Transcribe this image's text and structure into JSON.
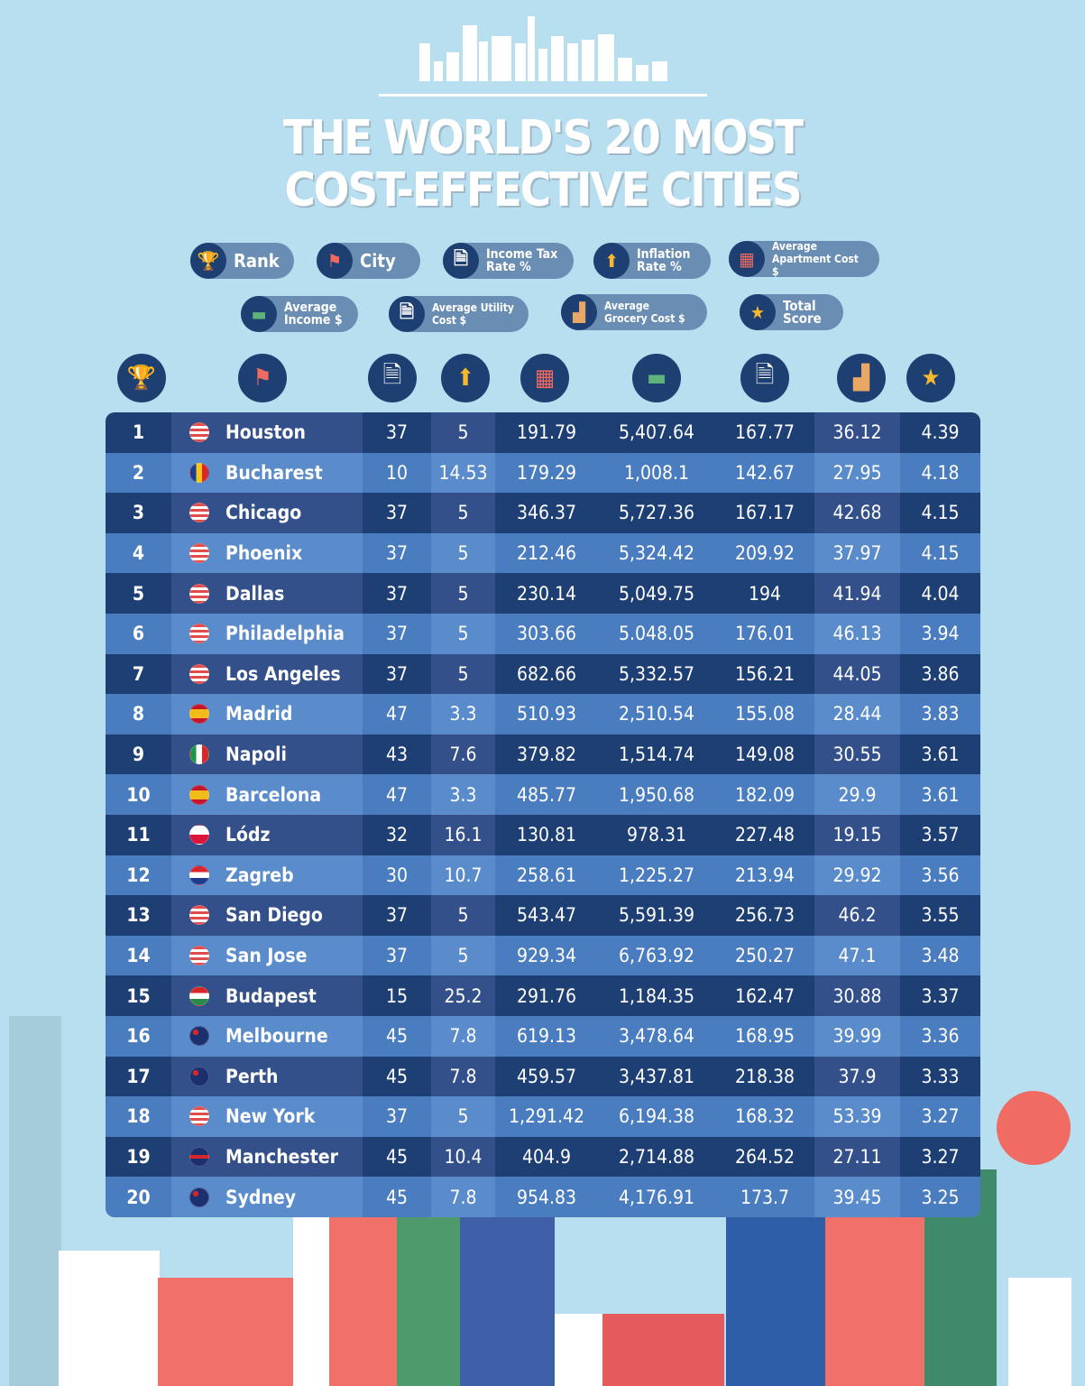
{
  "title_line1": "THE WORLD'S 20 MOST",
  "title_line2": "COST-EFFECTIVE CITIES",
  "legend": [
    {
      "icon": "trophy-icon",
      "label": "Rank"
    },
    {
      "icon": "flag-icon",
      "label": "City"
    },
    {
      "icon": "tax-document-icon",
      "label": "Income Tax Rate %"
    },
    {
      "icon": "inflation-coin-arrow-icon",
      "label": "Inflation Rate %"
    },
    {
      "icon": "apartment-building-icon",
      "label": "Average Apartment Cost $"
    },
    {
      "icon": "banknotes-icon",
      "label": "Average Income $"
    },
    {
      "icon": "utility-bill-icon",
      "label": "Average Utility Cost $"
    },
    {
      "icon": "grocery-bag-icon",
      "label": "Average Grocery Cost $"
    },
    {
      "icon": "star-icon",
      "label": "Total Score"
    }
  ],
  "colors": {
    "background": "#b8dff0",
    "row_dark": "#1e3f74",
    "row_light": "#4a7cc0",
    "pill": "#6a8db3",
    "icon_circle": "#1d3f72"
  },
  "rows": [
    {
      "rank": "1",
      "flag": "us",
      "city": "Houston",
      "tax": "37",
      "inflation": "5",
      "apartment": "191.79",
      "income": "5,407.64",
      "utility": "167.77",
      "grocery": "36.12",
      "score": "4.39"
    },
    {
      "rank": "2",
      "flag": "ro",
      "city": "Bucharest",
      "tax": "10",
      "inflation": "14.53",
      "apartment": "179.29",
      "income": "1,008.1",
      "utility": "142.67",
      "grocery": "27.95",
      "score": "4.18"
    },
    {
      "rank": "3",
      "flag": "us",
      "city": "Chicago",
      "tax": "37",
      "inflation": "5",
      "apartment": "346.37",
      "income": "5,727.36",
      "utility": "167.17",
      "grocery": "42.68",
      "score": "4.15"
    },
    {
      "rank": "4",
      "flag": "us",
      "city": "Phoenix",
      "tax": "37",
      "inflation": "5",
      "apartment": "212.46",
      "income": "5,324.42",
      "utility": "209.92",
      "grocery": "37.97",
      "score": "4.15"
    },
    {
      "rank": "5",
      "flag": "us",
      "city": "Dallas",
      "tax": "37",
      "inflation": "5",
      "apartment": "230.14",
      "income": "5,049.75",
      "utility": "194",
      "grocery": "41.94",
      "score": "4.04"
    },
    {
      "rank": "6",
      "flag": "us",
      "city": "Philadelphia",
      "tax": "37",
      "inflation": "5",
      "apartment": "303.66",
      "income": "5.048.05",
      "utility": "176.01",
      "grocery": "46.13",
      "score": "3.94"
    },
    {
      "rank": "7",
      "flag": "us",
      "city": "Los Angeles",
      "tax": "37",
      "inflation": "5",
      "apartment": "682.66",
      "income": "5,332.57",
      "utility": "156.21",
      "grocery": "44.05",
      "score": "3.86"
    },
    {
      "rank": "8",
      "flag": "es",
      "city": "Madrid",
      "tax": "47",
      "inflation": "3.3",
      "apartment": "510.93",
      "income": "2,510.54",
      "utility": "155.08",
      "grocery": "28.44",
      "score": "3.83"
    },
    {
      "rank": "9",
      "flag": "it",
      "city": "Napoli",
      "tax": "43",
      "inflation": "7.6",
      "apartment": "379.82",
      "income": "1,514.74",
      "utility": "149.08",
      "grocery": "30.55",
      "score": "3.61"
    },
    {
      "rank": "10",
      "flag": "es",
      "city": "Barcelona",
      "tax": "47",
      "inflation": "3.3",
      "apartment": "485.77",
      "income": "1,950.68",
      "utility": "182.09",
      "grocery": "29.9",
      "score": "3.61"
    },
    {
      "rank": "11",
      "flag": "pl",
      "city": "Lódz",
      "tax": "32",
      "inflation": "16.1",
      "apartment": "130.81",
      "income": "978.31",
      "utility": "227.48",
      "grocery": "19.15",
      "score": "3.57"
    },
    {
      "rank": "12",
      "flag": "hr",
      "city": "Zagreb",
      "tax": "30",
      "inflation": "10.7",
      "apartment": "258.61",
      "income": "1,225.27",
      "utility": "213.94",
      "grocery": "29.92",
      "score": "3.56"
    },
    {
      "rank": "13",
      "flag": "us",
      "city": "San Diego",
      "tax": "37",
      "inflation": "5",
      "apartment": "543.47",
      "income": "5,591.39",
      "utility": "256.73",
      "grocery": "46.2",
      "score": "3.55"
    },
    {
      "rank": "14",
      "flag": "us",
      "city": "San Jose",
      "tax": "37",
      "inflation": "5",
      "apartment": "929.34",
      "income": "6,763.92",
      "utility": "250.27",
      "grocery": "47.1",
      "score": "3.48"
    },
    {
      "rank": "15",
      "flag": "hu",
      "city": "Budapest",
      "tax": "15",
      "inflation": "25.2",
      "apartment": "291.76",
      "income": "1,184.35",
      "utility": "162.47",
      "grocery": "30.88",
      "score": "3.37"
    },
    {
      "rank": "16",
      "flag": "au",
      "city": "Melbourne",
      "tax": "45",
      "inflation": "7.8",
      "apartment": "619.13",
      "income": "3,478.64",
      "utility": "168.95",
      "grocery": "39.99",
      "score": "3.36"
    },
    {
      "rank": "17",
      "flag": "au",
      "city": "Perth",
      "tax": "45",
      "inflation": "7.8",
      "apartment": "459.57",
      "income": "3,437.81",
      "utility": "218.38",
      "grocery": "37.9",
      "score": "3.33"
    },
    {
      "rank": "18",
      "flag": "us",
      "city": "New York",
      "tax": "37",
      "inflation": "5",
      "apartment": "1,291.42",
      "income": "6,194.38",
      "utility": "168.32",
      "grocery": "53.39",
      "score": "3.27"
    },
    {
      "rank": "19",
      "flag": "gb",
      "city": "Manchester",
      "tax": "45",
      "inflation": "10.4",
      "apartment": "404.9",
      "income": "2,714.88",
      "utility": "264.52",
      "grocery": "27.11",
      "score": "3.27"
    },
    {
      "rank": "20",
      "flag": "au",
      "city": "Sydney",
      "tax": "45",
      "inflation": "7.8",
      "apartment": "954.83",
      "income": "4,176.91",
      "utility": "173.7",
      "grocery": "39.45",
      "score": "3.25"
    }
  ]
}
